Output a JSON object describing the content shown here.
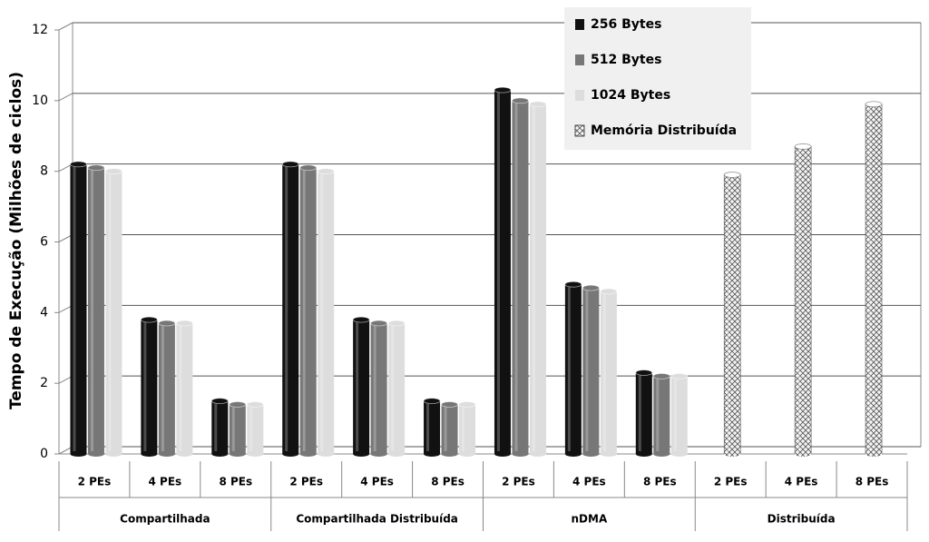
{
  "chart_data": {
    "type": "bar",
    "y_label": "Tempo de Execução (Milhões de ciclos)",
    "groups": [
      "Compartilhada",
      "Compartilhada Distribuída",
      "nDMA",
      "Distribuída"
    ],
    "categories": [
      "2 PEs",
      "4 PEs",
      "8 PEs",
      "2 PEs",
      "4 PEs",
      "8 PEs",
      "2 PEs",
      "4 PEs",
      "8 PEs",
      "2 PEs",
      "4 PEs",
      "8 PEs"
    ],
    "series": [
      {
        "name": "256 Bytes",
        "color": "#111111",
        "values": [
          8.2,
          3.8,
          1.5,
          8.2,
          3.8,
          1.5,
          10.3,
          4.8,
          2.3,
          null,
          null,
          null
        ]
      },
      {
        "name": "512 Bytes",
        "color": "#777777",
        "values": [
          8.1,
          3.7,
          1.4,
          8.1,
          3.7,
          1.4,
          10.0,
          4.7,
          2.2,
          null,
          null,
          null
        ]
      },
      {
        "name": "1024 Bytes",
        "color": "#dddddd",
        "values": [
          8.0,
          3.7,
          1.4,
          8.0,
          3.7,
          1.4,
          9.9,
          4.6,
          2.2,
          null,
          null,
          null
        ]
      },
      {
        "name": "Memória Distribuída",
        "color": "#999999",
        "hatch": true,
        "values": [
          null,
          null,
          null,
          null,
          null,
          null,
          null,
          null,
          null,
          7.9,
          8.7,
          9.9
        ]
      }
    ],
    "ylim": [
      0,
      12
    ],
    "yticks": [
      0,
      2,
      4,
      6,
      8,
      10,
      12
    ],
    "grid": true
  }
}
